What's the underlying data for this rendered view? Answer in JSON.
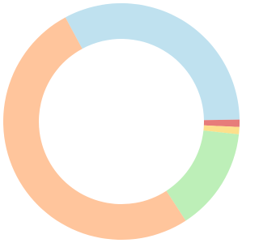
{
  "chart_data": {
    "type": "donut",
    "values": [
      32.6,
      1,
      1,
      14.1,
      51.3
    ],
    "colors": [
      "#bfe1ef",
      "#e77c7a",
      "#fde08c",
      "#bdefb8",
      "#ffc59c"
    ]
  }
}
